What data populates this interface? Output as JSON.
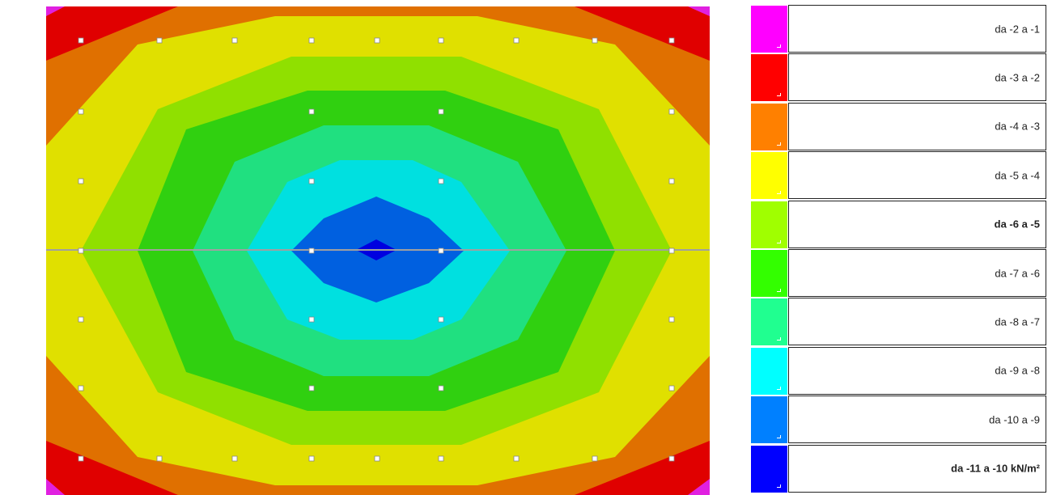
{
  "legend": {
    "items": [
      {
        "label": "da -2 a -1",
        "color": "#ff00ff",
        "bold": false
      },
      {
        "label": "da -3 a -2",
        "color": "#ff0000",
        "bold": false
      },
      {
        "label": "da -4 a -3",
        "color": "#ff8000",
        "bold": false
      },
      {
        "label": "da -5 a -4",
        "color": "#ffff00",
        "bold": false
      },
      {
        "label": "da -6 a -5",
        "color": "#a0ff00",
        "bold": true
      },
      {
        "label": "da -7 a -6",
        "color": "#33ff00",
        "bold": false
      },
      {
        "label": "da -8 a -7",
        "color": "#20ff90",
        "bold": false
      },
      {
        "label": "da -9 a -8",
        "color": "#00ffff",
        "bold": false
      },
      {
        "label": "da -10 a -9",
        "color": "#0080ff",
        "bold": false
      },
      {
        "label": "da -11 a -10 kN/m²",
        "color": "#0000ff",
        "bold": true
      }
    ]
  },
  "contour_colors": {
    "band_magenta": "#e020e0",
    "band_red": "#e00000",
    "band_orange": "#e07000",
    "band_yellow": "#e0e000",
    "band_lime": "#90e000",
    "band_green": "#30d010",
    "band_seagreen": "#20e080",
    "band_cyan": "#00e0e0",
    "band_blue": "#0060e0",
    "band_deepblue": "#0000e0"
  }
}
